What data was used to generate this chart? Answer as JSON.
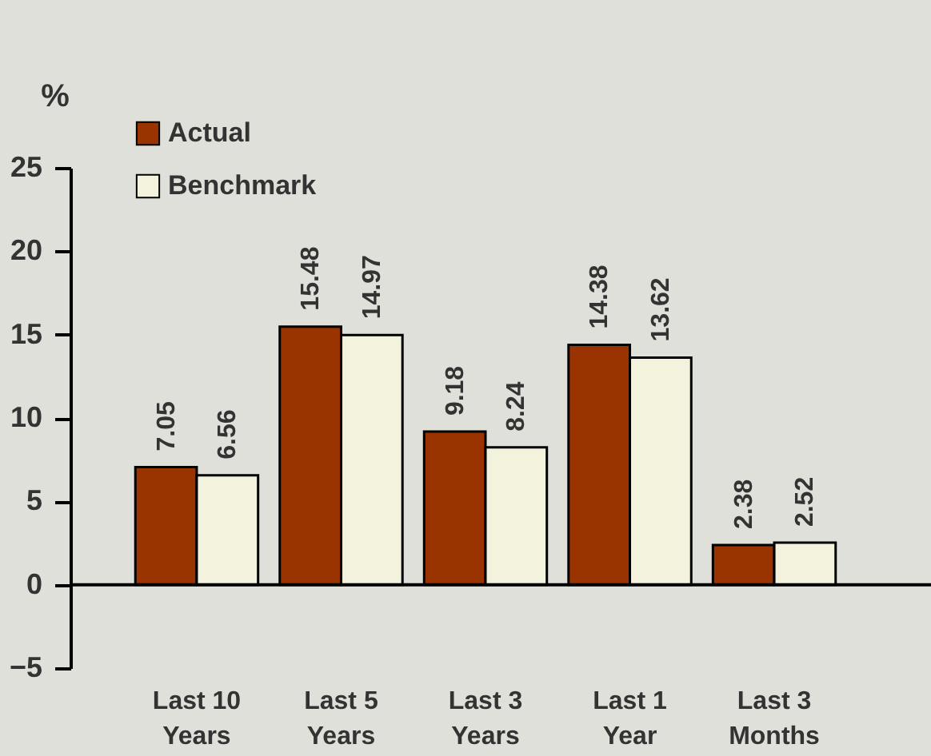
{
  "chart_data": {
    "type": "bar",
    "ylabel": "%",
    "categories": [
      "Last 10 Years",
      "Last 5 Years",
      "Last 3 Years",
      "Last 1 Year",
      "Last 3 Months"
    ],
    "series": [
      {
        "name": "Actual",
        "color": "#993300",
        "values": [
          7.05,
          15.48,
          9.18,
          14.38,
          2.38
        ]
      },
      {
        "name": "Benchmark",
        "color": "#f3f2dc",
        "values": [
          6.56,
          14.97,
          8.24,
          13.62,
          2.52
        ]
      }
    ],
    "ylim": [
      -5,
      25
    ],
    "yticks": [
      -5,
      0,
      5,
      10,
      15,
      20,
      25
    ],
    "data_labels": true,
    "legend": "top left"
  }
}
